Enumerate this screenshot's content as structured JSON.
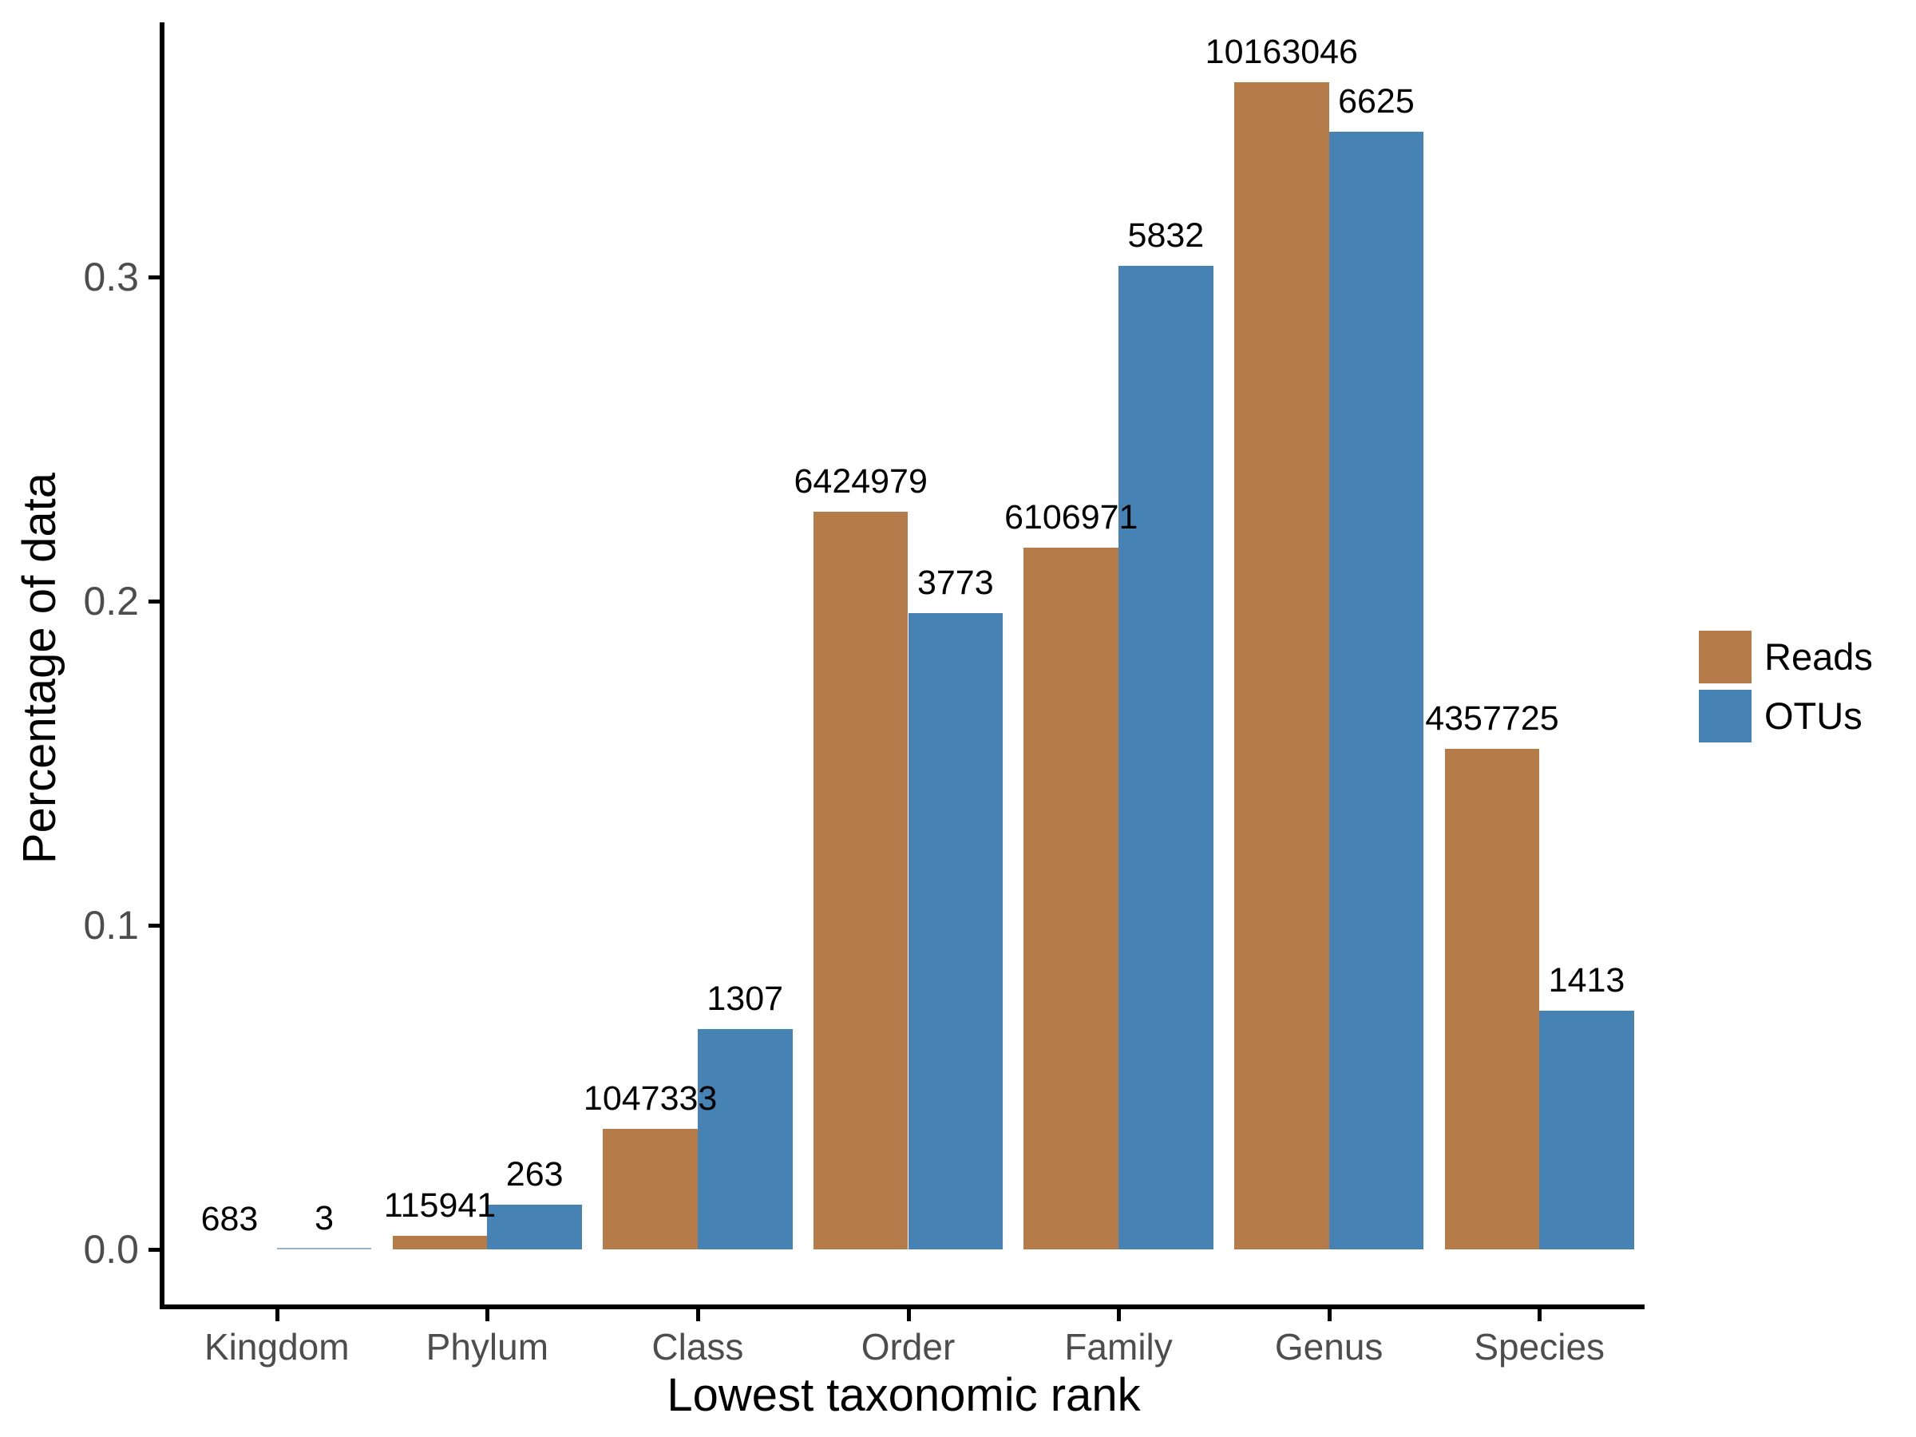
{
  "chart_data": {
    "type": "bar",
    "title": "",
    "xlabel": "Lowest taxonomic rank",
    "ylabel": "Percentage of data",
    "categories": [
      "Kingdom",
      "Phylum",
      "Class",
      "Order",
      "Family",
      "Genus",
      "Species"
    ],
    "series": [
      {
        "name": "Reads",
        "color": "#b57c4a",
        "counts": [
          683,
          115941,
          1047333,
          6424979,
          6106971,
          10163046,
          4357725
        ],
        "proportions": [
          2.42e-05,
          0.0041089,
          0.0371176,
          0.2277013,
          0.2164311,
          0.3601785,
          0.1544384
        ]
      },
      {
        "name": "OTUs",
        "color": "#4682b4",
        "counts": [
          3,
          263,
          1307,
          3773,
          5832,
          6625,
          1413
        ],
        "proportions": [
          0.0001561,
          0.0136865,
          0.0680162,
          0.1963468,
          0.3034971,
          0.3447648,
          0.0735325
        ]
      }
    ],
    "bar_labels_shown": "counts",
    "y_ticks": [
      {
        "value": 0.0,
        "label": "0.0"
      },
      {
        "value": 0.1,
        "label": "0.1"
      },
      {
        "value": 0.2,
        "label": "0.2"
      },
      {
        "value": 0.3,
        "label": "0.3"
      }
    ],
    "ylim": [
      0,
      0.379
    ],
    "grid": false,
    "legend_position": "right",
    "colors": {
      "axis_line": "#000000",
      "tick_label": "#4d4d4d",
      "category_label": "#4d4d4d",
      "axis_title": "#000000",
      "bar_label": "#000000",
      "background": "#ffffff"
    }
  }
}
